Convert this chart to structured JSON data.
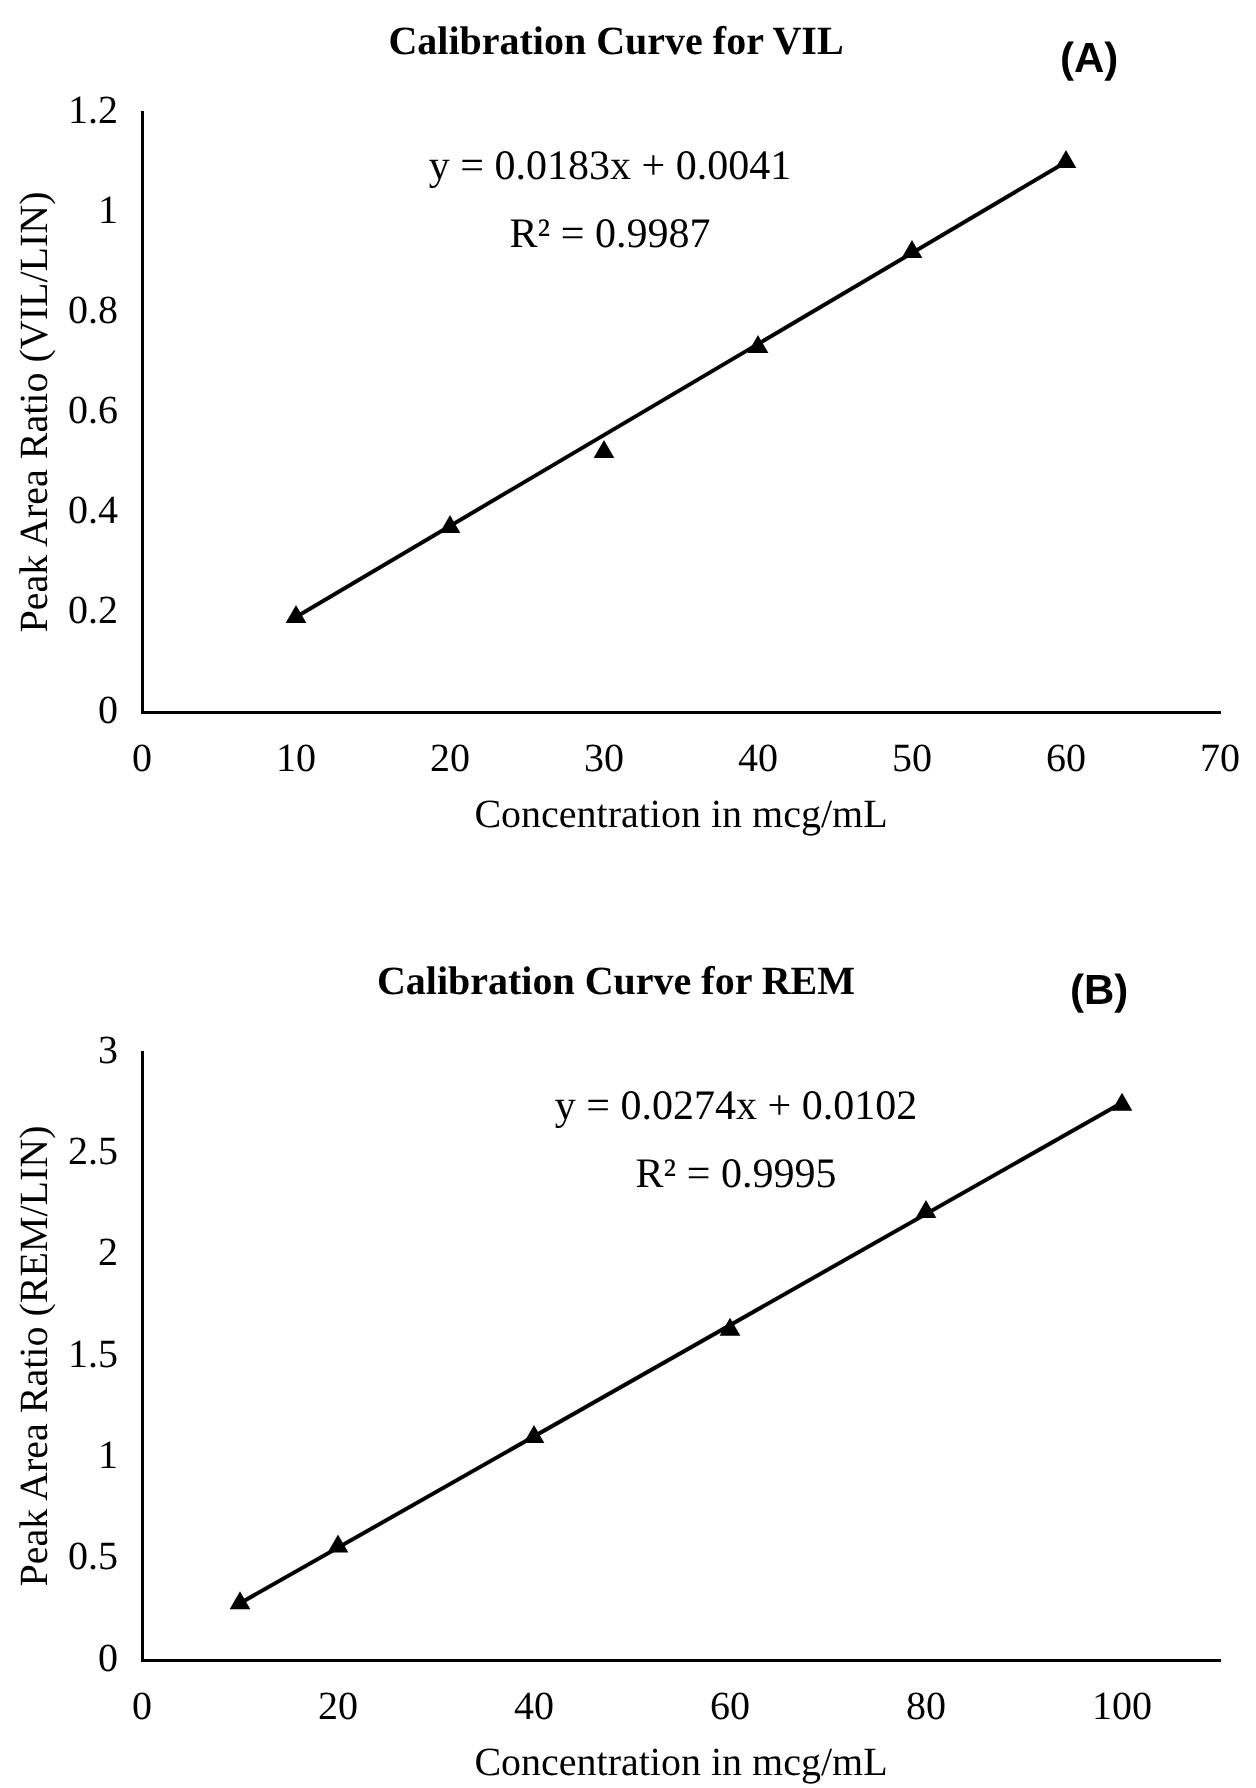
{
  "chart_data": [
    {
      "type": "scatter",
      "title": "Calibration Curve for VIL",
      "xlabel": "Concentration in mcg/mL",
      "ylabel": "Peak Area Ratio (VIL/LIN)",
      "annotations": [
        "(A)",
        "y = 0.0183x + 0.0041",
        "R² = 0.9987"
      ],
      "x": [
        10,
        20,
        30,
        40,
        50,
        60
      ],
      "xlim": [
        0,
        70
      ],
      "xticks": [
        0,
        10,
        20,
        30,
        40,
        50,
        60,
        70
      ],
      "ylim": [
        0,
        1.2
      ],
      "yticks": [
        0,
        0.2,
        0.4,
        0.6,
        0.8,
        1,
        1.2
      ],
      "grid": false,
      "legend": false,
      "marker": "triangle",
      "series": [
        {
          "color": "#000000",
          "values": [
            0.19,
            0.37,
            0.52,
            0.73,
            0.92,
            1.1
          ]
        },
        {
          "type": "line",
          "color": "#000000",
          "x": [
            10,
            60
          ],
          "values": [
            0.19,
            1.1
          ],
          "marker": "none",
          "line_style": "solid"
        }
      ]
    },
    {
      "type": "scatter",
      "title": "Calibration Curve for REM",
      "xlabel": "Concentration in mcg/mL",
      "ylabel": "Peak Area Ratio (REM/LIN)",
      "annotations": [
        "(B)",
        "y = 0.0274x + 0.0102",
        "R² = 0.9995"
      ],
      "x": [
        10,
        20,
        40,
        60,
        80,
        100
      ],
      "xlim": [
        0,
        110
      ],
      "xticks": [
        0,
        20,
        40,
        60,
        80,
        100
      ],
      "ylim": [
        0,
        3
      ],
      "yticks": [
        0,
        0.5,
        1,
        1.5,
        2,
        2.5,
        3
      ],
      "grid": false,
      "legend": false,
      "marker": "triangle",
      "series": [
        {
          "color": "#000000",
          "values": [
            0.28,
            0.56,
            1.1,
            1.63,
            2.21,
            2.74
          ]
        },
        {
          "type": "line",
          "color": "#000000",
          "x": [
            10,
            100
          ],
          "values": [
            0.28,
            2.75
          ],
          "marker": "none",
          "line_style": "solid"
        }
      ]
    }
  ]
}
